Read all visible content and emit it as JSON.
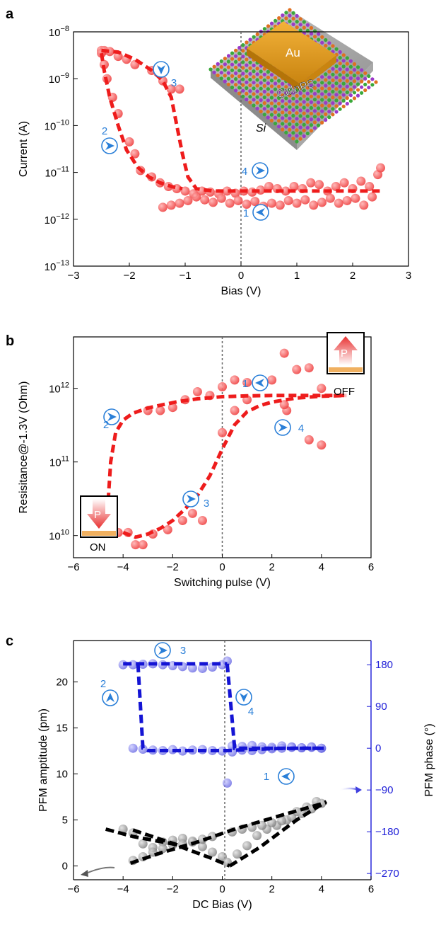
{
  "panels": {
    "a": {
      "label": "a"
    },
    "b": {
      "label": "b"
    },
    "c": {
      "label": "c"
    }
  },
  "inset_a": {
    "electrode": "Au",
    "material": "CuInPS",
    "substrate": "Si"
  },
  "badges_b": {
    "off": "OFF",
    "on": "ON",
    "p": "P"
  },
  "colors": {
    "red": "#ef2020",
    "red_marker": "#f26060",
    "blue": "#1a1ad8",
    "blue_marker": "#6a6ae8",
    "black": "#000000",
    "grey_marker": "#909090",
    "step_blue": "#2a7fd8"
  },
  "chart_data": [
    {
      "type": "scatter",
      "panel": "a",
      "xlabel": "Bias (V)",
      "ylabel": "Current (A)",
      "xlim": [
        -3,
        3
      ],
      "ylim": [
        1e-13,
        1e-08
      ],
      "yscale": "log",
      "xticks": [
        "−3",
        "−2",
        "−1",
        "0",
        "1",
        "2",
        "3"
      ],
      "yticks": [
        {
          "base": "10",
          "exp": "−8"
        },
        {
          "base": "10",
          "exp": "−9"
        },
        {
          "base": "10",
          "exp": "−10"
        },
        {
          "base": "10",
          "exp": "−11"
        },
        {
          "base": "10",
          "exp": "−12"
        },
        {
          "base": "10",
          "exp": "−13"
        }
      ],
      "step_labels": [
        "1",
        "2",
        "3",
        "4"
      ],
      "series": [
        {
          "style": "markers",
          "x": [
            -2.5,
            -2.45,
            -2.35,
            -2.2,
            -2.05,
            -1.9,
            -1.6,
            -1.4,
            -1.25,
            -1.1,
            -1.9,
            -2.0,
            -2.2,
            -2.3,
            -2.4,
            -2.45,
            -2.5,
            -1.8,
            -1.6,
            -1.45,
            -1.3,
            -1.15,
            -1.0,
            -0.85,
            -0.7,
            -0.55,
            -0.4,
            -0.25,
            -0.1,
            0.05,
            0.2,
            0.35,
            0.5,
            0.65,
            0.8,
            0.95,
            1.1,
            1.25,
            1.4,
            1.55,
            1.7,
            1.85,
            2.0,
            2.15,
            2.3,
            2.45,
            2.5,
            2.35,
            2.2,
            2.05,
            1.9,
            1.75,
            1.6,
            1.45,
            1.3,
            1.15,
            1.0,
            0.85,
            0.7,
            0.55,
            0.4,
            0.25,
            0.1,
            -0.05,
            -0.2,
            -0.35,
            -0.5,
            -0.65,
            -0.8,
            -0.95,
            -1.1,
            -1.25,
            -1.4
          ],
          "y": [
            4e-09,
            4e-09,
            3.8e-09,
            3e-09,
            2.6e-09,
            2e-09,
            1.5e-09,
            9e-10,
            6e-10,
            6e-10,
            2.5e-11,
            4.5e-11,
            1.8e-10,
            4e-10,
            1e-09,
            2e-09,
            3.5e-09,
            1.1e-11,
            8e-12,
            6e-12,
            5e-12,
            4.5e-12,
            4e-12,
            3.5e-12,
            4e-12,
            3.8e-12,
            3.5e-12,
            4e-12,
            3.6e-12,
            4e-12,
            3.8e-12,
            4.2e-12,
            5e-12,
            4.5e-12,
            4e-12,
            5e-12,
            4.5e-12,
            6e-12,
            5.5e-12,
            4e-12,
            5e-12,
            6e-12,
            4.5e-12,
            6.5e-12,
            5e-12,
            9e-12,
            1.25e-11,
            3e-12,
            2e-12,
            2.8e-12,
            2.5e-12,
            2.2e-12,
            2.8e-12,
            2.3e-12,
            2e-12,
            2.6e-12,
            2.2e-12,
            2.5e-12,
            2e-12,
            2.2e-12,
            1.9e-12,
            2.4e-12,
            2.1e-12,
            2.5e-12,
            2.2e-12,
            2.8e-12,
            2.3e-12,
            2.6e-12,
            3e-12,
            2.5e-12,
            2.2e-12,
            2e-12,
            1.8e-12
          ]
        },
        {
          "style": "dashed-fit",
          "x": [
            -2.5,
            -2.2,
            -1.9,
            -1.6,
            -1.4,
            -1.25,
            -1.15,
            -1.05,
            -0.95,
            -0.8,
            -0.5,
            0,
            1,
            2,
            2.5
          ],
          "y": [
            4e-09,
            3.7e-09,
            2.6e-09,
            1.5e-09,
            9e-10,
            4e-10,
            1e-10,
            2.5e-11,
            8e-12,
            4.5e-12,
            4e-12,
            4e-12,
            4e-12,
            4e-12,
            4e-12
          ]
        },
        {
          "style": "dashed-fit",
          "x": [
            -2.5,
            -2.45,
            -2.35,
            -2.2,
            -2.05,
            -1.85,
            -1.65,
            -1.45,
            -1.25,
            -1.05
          ],
          "y": [
            3.5e-09,
            1.5e-09,
            4e-10,
            1e-10,
            3e-11,
            1.3e-11,
            8e-12,
            6e-12,
            5e-12,
            4.5e-12
          ]
        }
      ]
    },
    {
      "type": "scatter",
      "panel": "b",
      "xlabel": "Switching pulse (V)",
      "ylabel": "Resisitance@-1.3V (Ohm)",
      "xlim": [
        -6,
        6
      ],
      "ylim": [
        5000000000.0,
        5000000000000.0
      ],
      "yscale": "log",
      "xticks": [
        "−6",
        "−4",
        "−2",
        "0",
        "2",
        "4",
        "6"
      ],
      "yticks": [
        {
          "base": "10",
          "exp": "12"
        },
        {
          "base": "10",
          "exp": "11"
        },
        {
          "base": "10",
          "exp": "10"
        }
      ],
      "step_labels": [
        "1",
        "2",
        "3",
        "4"
      ],
      "series": [
        {
          "style": "markers",
          "x": [
            -4.2,
            -3.8,
            -3.5,
            -3.2,
            -2.8,
            -2.2,
            -1.6,
            -1.2,
            -0.8,
            0,
            0.5,
            1.0,
            1.5,
            2.0,
            2.5,
            2.6,
            3.0,
            3.5,
            3.5,
            4.0,
            4.0,
            2.5,
            1.0,
            0.5,
            0,
            -0.5,
            -1.0,
            -1.5,
            -2.0,
            -2.5,
            -3.0
          ],
          "y": [
            11000000000.0,
            11000000000.0,
            7500000000.0,
            7500000000.0,
            10500000000.0,
            12000000000.0,
            16000000000.0,
            20000000000.0,
            16000000000.0,
            250000000000.0,
            500000000000.0,
            700000000000.0,
            1250000000000.0,
            1300000000000.0,
            3000000000000.0,
            500000000000.0,
            1800000000000.0,
            1900000000000.0,
            200000000000.0,
            1000000000000.0,
            170000000000.0,
            600000000000.0,
            1200000000000.0,
            1300000000000.0,
            1050000000000.0,
            800000000000.0,
            900000000000.0,
            700000000000.0,
            550000000000.0,
            500000000000.0,
            500000000000.0
          ]
        },
        {
          "style": "dashed-fit",
          "x": [
            -4.6,
            -4.5,
            -4.3,
            -4.0,
            -3.6,
            -3.0,
            -2.4,
            -1.8,
            -1.0,
            0,
            1.0,
            2.0,
            3.0,
            4.0,
            5.0
          ],
          "y": [
            30000000000.0,
            100000000000.0,
            250000000000.0,
            370000000000.0,
            460000000000.0,
            540000000000.0,
            600000000000.0,
            660000000000.0,
            720000000000.0,
            770000000000.0,
            790000000000.0,
            800000000000.0,
            800000000000.0,
            800000000000.0,
            800000000000.0
          ]
        },
        {
          "style": "dashed-fit",
          "x": [
            -4.0,
            -3.5,
            -3.0,
            -2.5,
            -2.0,
            -1.5,
            -1.0,
            -0.5,
            0,
            0.5,
            1.0,
            1.5,
            2.0,
            3.0,
            4.0,
            5.0
          ],
          "y": [
            11000000000.0,
            9500000000.0,
            10500000000.0,
            12500000000.0,
            16000000000.0,
            23000000000.0,
            35000000000.0,
            65000000000.0,
            150000000000.0,
            320000000000.0,
            480000000000.0,
            580000000000.0,
            650000000000.0,
            740000000000.0,
            780000000000.0,
            800000000000.0
          ]
        }
      ]
    },
    {
      "type": "scatter",
      "panel": "c",
      "xlabel": "DC Bias (V)",
      "ylabel": "PFM amptitude (pm)",
      "ylabel_right": "PFM phase (°)",
      "xlim": [
        -6,
        6
      ],
      "ylim": [
        -1.5,
        24.5
      ],
      "ylim_right": [
        -283.5,
        232.2
      ],
      "xticks": [
        "−6",
        "−4",
        "−2",
        "0",
        "2",
        "4",
        "6"
      ],
      "yticks": [
        "0",
        "5",
        "10",
        "15",
        "20"
      ],
      "yticks_right": [
        "180",
        "90",
        "0",
        "−90",
        "−180",
        "−270"
      ],
      "step_labels": [
        "1",
        "2",
        "3",
        "4"
      ],
      "series": [
        {
          "style": "markers",
          "axis": "right",
          "x": [
            -4.0,
            -3.6,
            -3.2,
            -2.8,
            -2.4,
            -2.0,
            -1.6,
            -1.2,
            -0.8,
            -0.4,
            0.0,
            0.2,
            0.2,
            0.4,
            0.8,
            1.2,
            1.6,
            2.0,
            2.4,
            2.8,
            3.2,
            3.6,
            4.0,
            4.0,
            3.6,
            3.2,
            2.8,
            2.4,
            2.0,
            1.6,
            1.2,
            0.8,
            0.4,
            0.0,
            -0.4,
            -0.8,
            -1.2,
            -1.6,
            -2.0,
            -2.4,
            -2.8,
            -3.2,
            -3.6
          ],
          "y": [
            180,
            180,
            181,
            182,
            180,
            178,
            176,
            173,
            172,
            175,
            180,
            188,
            -75,
            5,
            4,
            6,
            3,
            2,
            5,
            3,
            1,
            2,
            0,
            0,
            3,
            1,
            2,
            0,
            -1,
            -3,
            -5,
            -4,
            -8,
            -6,
            -5,
            -3,
            -4,
            -6,
            -3,
            -5,
            -4,
            -2,
            0
          ]
        },
        {
          "style": "dashed-fit",
          "axis": "right",
          "x": [
            0.2,
            0.5,
            1.5,
            2.5,
            3.5,
            4.1
          ],
          "y": [
            182,
            0,
            0,
            0,
            0,
            0
          ]
        },
        {
          "style": "dashed-fit",
          "axis": "right",
          "x": [
            -4.0,
            0.2
          ],
          "y": [
            182,
            182
          ]
        },
        {
          "style": "dashed-fit",
          "axis": "right",
          "x": [
            -3.4,
            -3.2,
            -3.0,
            -2.0,
            0.2,
            1.0,
            2.0,
            3.0,
            4.0
          ],
          "y": [
            182,
            0,
            -5,
            -5,
            -5,
            -3,
            -1,
            0,
            0
          ]
        },
        {
          "style": "markers",
          "axis": "left",
          "x": [
            -4.0,
            -3.6,
            -3.2,
            -2.8,
            -2.4,
            -2.0,
            -1.6,
            -1.2,
            -0.8,
            -0.4,
            0.0,
            0.2,
            0.6,
            1.0,
            1.4,
            1.8,
            2.2,
            2.6,
            3.0,
            3.4,
            3.8,
            4.0,
            3.6,
            3.2,
            2.8,
            2.4,
            2.0,
            1.6,
            1.2,
            0.8,
            0.4,
            -0.4,
            -0.8,
            -1.2,
            -1.6,
            -2.0,
            -2.4,
            -2.8,
            -3.2,
            -3.6
          ],
          "y": [
            4,
            3.6,
            2.4,
            2.0,
            2.6,
            2.8,
            3.0,
            2.6,
            2.1,
            1.5,
            1.0,
            0.4,
            1.3,
            2.2,
            3.3,
            4.0,
            4.4,
            5.0,
            5.9,
            6.4,
            7.0,
            6.8,
            6.2,
            5.7,
            5.3,
            4.9,
            4.7,
            4.4,
            4.2,
            4.0,
            3.7,
            3.2,
            2.9,
            2.7,
            2.4,
            2.3,
            1.9,
            1.5,
            1.0,
            0.6
          ]
        },
        {
          "style": "dashed-fit",
          "axis": "left",
          "x": [
            -4.7,
            -3.6,
            -2.0,
            -0.5,
            0.3
          ],
          "y": [
            4.0,
            3.2,
            2.4,
            0.9,
            0.0
          ]
        },
        {
          "style": "dashed-fit",
          "axis": "left",
          "x": [
            0.3,
            1.5,
            3.0,
            4.2
          ],
          "y": [
            0.0,
            2.0,
            5.0,
            7.0
          ]
        },
        {
          "style": "dashed-fit",
          "axis": "left",
          "x": [
            -3.7,
            -2.5,
            -1.0,
            0.5,
            2.5,
            4.2
          ],
          "y": [
            0.3,
            1.4,
            2.6,
            4.0,
            5.6,
            6.9
          ]
        },
        {
          "style": "dashed-fit",
          "axis": "left",
          "x": [
            -3.6,
            -1.6
          ],
          "y": [
            3.9,
            2.1
          ]
        }
      ]
    }
  ]
}
